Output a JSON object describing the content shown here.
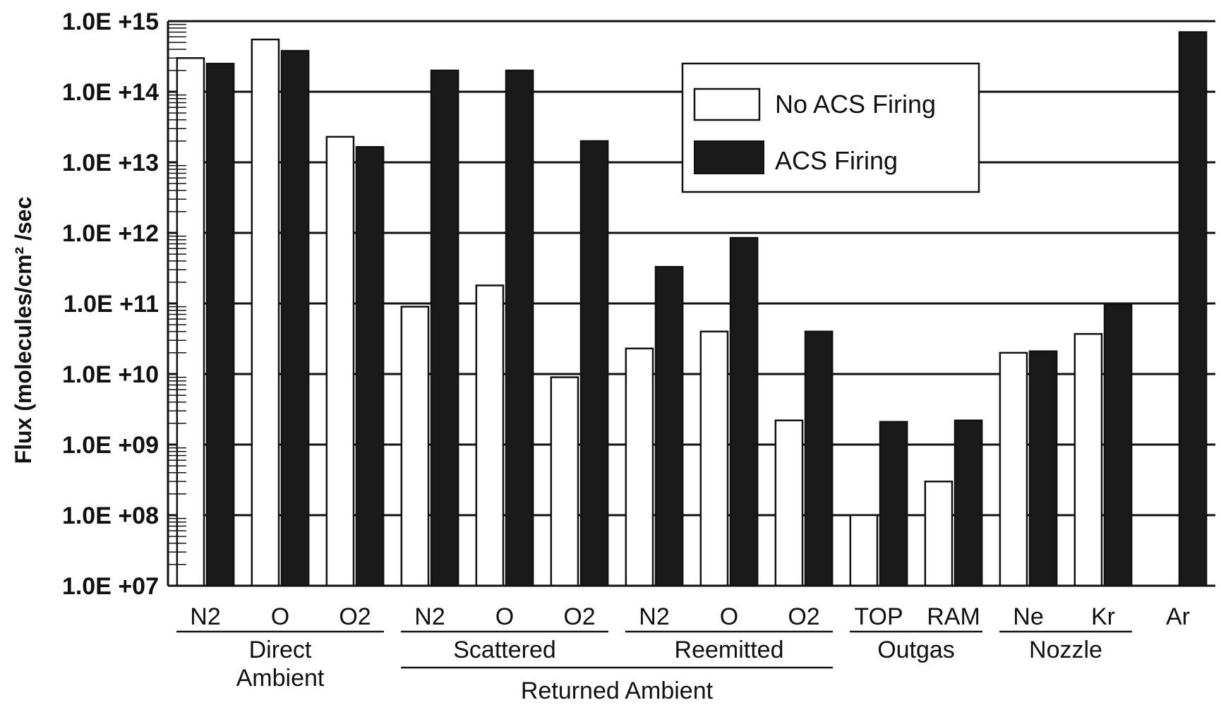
{
  "chart_data": {
    "type": "bar",
    "ylabel": "Flux (molecules/cm² /sec",
    "yscale": "log",
    "ylim": [
      10000000.0,
      1000000000000000.0
    ],
    "yticks": [
      {
        "value": 1000000000000000.0,
        "label": "1.0E +15"
      },
      {
        "value": 100000000000000.0,
        "label": "1.0E +14"
      },
      {
        "value": 10000000000000.0,
        "label": "1.0E +13"
      },
      {
        "value": 1000000000000.0,
        "label": "1.0E +12"
      },
      {
        "value": 100000000000.0,
        "label": "1.0E +11"
      },
      {
        "value": 10000000000.0,
        "label": "1.0E +10"
      },
      {
        "value": 1000000000.0,
        "label": "1.0E +09"
      },
      {
        "value": 100000000.0,
        "label": "1.0E +08"
      },
      {
        "value": 10000000.0,
        "label": "1.0E +07"
      }
    ],
    "grid": true,
    "legend": {
      "position": "top-center",
      "entries": [
        {
          "name": "No ACS Firing",
          "color": "#ffffff"
        },
        {
          "name": "ACS Firing",
          "color": "#1a1a1a"
        }
      ]
    },
    "categories": [
      "N2",
      "O",
      "O2",
      "N2",
      "O",
      "O2",
      "N2",
      "O",
      "O2",
      "TOP",
      "RAM",
      "Ne",
      "Kr",
      "Ar"
    ],
    "series": [
      {
        "name": "No ACS Firing",
        "color": "#ffffff",
        "values": [
          300000000000000.0,
          550000000000000.0,
          23000000000000.0,
          90000000000.0,
          180000000000.0,
          9000000000.0,
          23000000000.0,
          40000000000.0,
          2200000000.0,
          100000000.0,
          300000000.0,
          20000000000.0,
          37000000000.0,
          null
        ]
      },
      {
        "name": "ACS Firing",
        "color": "#1a1a1a",
        "values": [
          250000000000000.0,
          380000000000000.0,
          16500000000000.0,
          200000000000000.0,
          200000000000000.0,
          20000000000000.0,
          330000000000.0,
          850000000000.0,
          40000000000.0,
          2100000000.0,
          2200000000.0,
          21000000000.0,
          95000000000.0,
          700000000000000.0
        ]
      }
    ],
    "groups": [
      {
        "label": "Direct Ambient",
        "lines": [
          "Direct",
          "Ambient"
        ],
        "start": 0,
        "end": 2
      },
      {
        "label": "Scattered",
        "lines": [
          "Scattered"
        ],
        "start": 3,
        "end": 5
      },
      {
        "label": "Reemitted",
        "lines": [
          "Reemitted"
        ],
        "start": 6,
        "end": 8
      },
      {
        "label": "Outgas",
        "lines": [
          "Outgas"
        ],
        "start": 9,
        "end": 10
      },
      {
        "label": "Nozzle",
        "lines": [
          "Nozzle"
        ],
        "start": 11,
        "end": 12
      }
    ],
    "supergroups": [
      {
        "label": "Returned Ambient",
        "start": 3,
        "end": 8
      }
    ],
    "colors": {
      "grid": "#111111",
      "bar_outline": "#111111",
      "dark_bar": "#1a1a1a"
    }
  }
}
